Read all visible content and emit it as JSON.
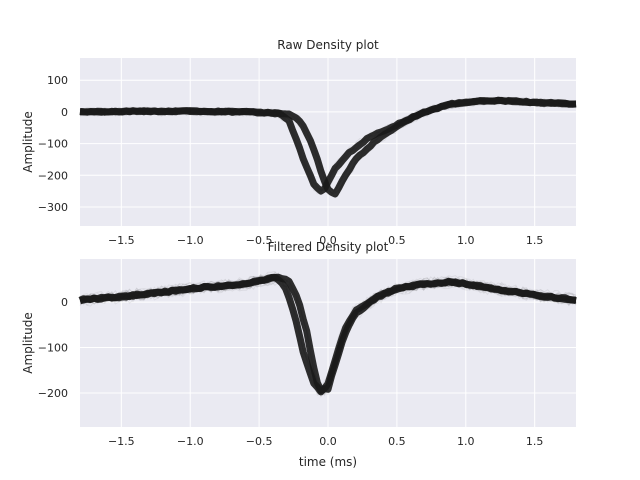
{
  "chart_data": [
    {
      "type": "line",
      "title": "Raw Density plot",
      "ylabel": "Amplitude",
      "xlabel": "",
      "xlim": [
        -1.8,
        1.8
      ],
      "ylim": [
        -360,
        170
      ],
      "xticks": [
        -1.5,
        -1.0,
        -0.5,
        0.0,
        0.5,
        1.0,
        1.5
      ],
      "xtick_labels": [
        "−1.5",
        "−1.0",
        "−0.5",
        "0.0",
        "0.5",
        "1.0",
        "1.5"
      ],
      "yticks": [
        100,
        0,
        -100,
        -200,
        -300
      ],
      "ytick_labels": [
        "100",
        "0",
        "−100",
        "−200",
        "−300"
      ],
      "grid": true,
      "series": [
        {
          "color": "#1a1a1a",
          "x": [
            -1.8,
            -1.4,
            -1.0,
            -0.6,
            -0.35,
            -0.28,
            -0.22,
            -0.16,
            -0.1,
            -0.06,
            -0.02,
            0.05,
            0.15,
            0.3,
            0.5,
            0.7,
            0.9,
            1.1,
            1.3,
            1.5,
            1.8
          ],
          "values": [
            0,
            2,
            2,
            0,
            -5,
            -30,
            -100,
            -170,
            -230,
            -250,
            -240,
            -180,
            -130,
            -80,
            -40,
            0,
            25,
            35,
            35,
            30,
            25
          ]
        },
        {
          "color": "#1a1a1a",
          "x": [
            -1.8,
            -1.4,
            -1.0,
            -0.6,
            -0.3,
            -0.22,
            -0.16,
            -0.1,
            -0.05,
            0.0,
            0.05,
            0.1,
            0.2,
            0.35,
            0.5,
            0.7,
            0.9,
            1.1,
            1.3,
            1.5,
            1.8
          ],
          "values": [
            0,
            2,
            2,
            0,
            -5,
            -20,
            -60,
            -120,
            -190,
            -245,
            -260,
            -220,
            -150,
            -90,
            -45,
            0,
            25,
            35,
            35,
            30,
            25
          ]
        }
      ]
    },
    {
      "type": "line",
      "title": "Filtered Density plot",
      "ylabel": "Amplitude",
      "xlabel": "time (ms)",
      "xlim": [
        -1.8,
        1.8
      ],
      "ylim": [
        -275,
        95
      ],
      "xticks": [
        -1.5,
        -1.0,
        -0.5,
        0.0,
        0.5,
        1.0,
        1.5
      ],
      "xtick_labels": [
        "−1.5",
        "−1.0",
        "−0.5",
        "0.0",
        "0.5",
        "1.0",
        "1.5"
      ],
      "yticks": [
        0,
        -100,
        -200
      ],
      "ytick_labels": [
        "0",
        "−100",
        "−200"
      ],
      "grid": true,
      "series": [
        {
          "color": "#1a1a1a",
          "x": [
            -1.8,
            -1.5,
            -1.2,
            -1.0,
            -0.8,
            -0.6,
            -0.45,
            -0.38,
            -0.32,
            -0.25,
            -0.18,
            -0.1,
            -0.05,
            0.0,
            0.05,
            0.12,
            0.2,
            0.35,
            0.5,
            0.7,
            0.9,
            1.1,
            1.3,
            1.5,
            1.8
          ],
          "values": [
            5,
            12,
            22,
            30,
            35,
            40,
            50,
            55,
            40,
            -20,
            -110,
            -180,
            -200,
            -180,
            -130,
            -60,
            -20,
            10,
            30,
            40,
            45,
            35,
            25,
            15,
            5
          ]
        },
        {
          "color": "#1a1a1a",
          "x": [
            -1.8,
            -1.5,
            -1.2,
            -1.0,
            -0.8,
            -0.6,
            -0.45,
            -0.35,
            -0.28,
            -0.22,
            -0.15,
            -0.1,
            -0.06,
            0.0,
            0.05,
            0.12,
            0.2,
            0.35,
            0.5,
            0.7,
            0.9,
            1.1,
            1.3,
            1.5,
            1.8
          ],
          "values": [
            5,
            12,
            22,
            30,
            35,
            40,
            50,
            55,
            45,
            10,
            -70,
            -150,
            -195,
            -190,
            -140,
            -70,
            -25,
            10,
            30,
            40,
            45,
            35,
            25,
            15,
            5
          ]
        }
      ]
    }
  ]
}
